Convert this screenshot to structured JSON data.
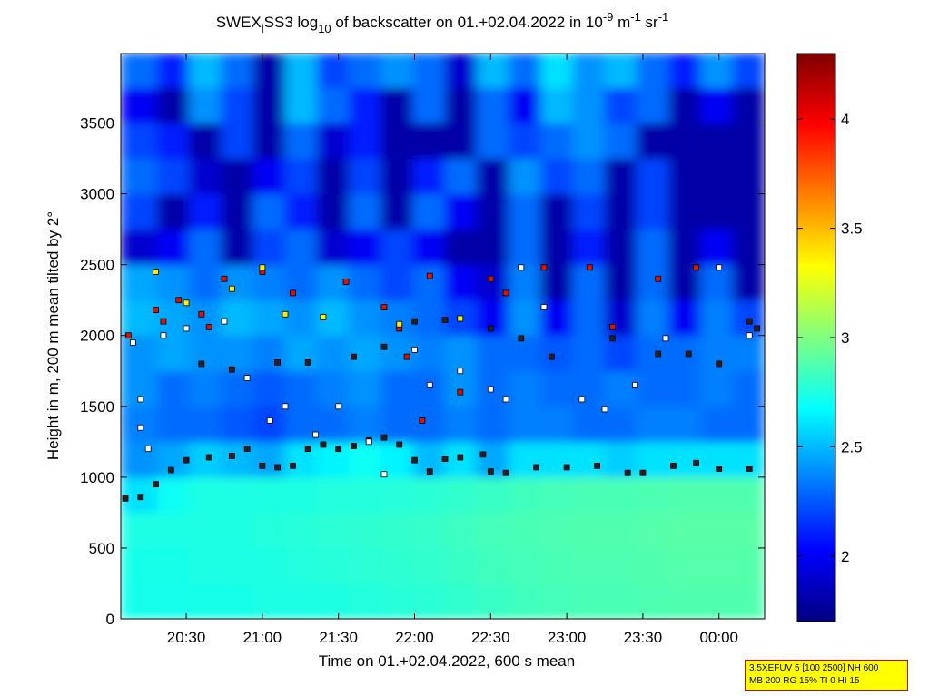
{
  "chart_data": {
    "type": "heatmap",
    "title_parts": [
      "SWEX",
      "l",
      "SS3 log",
      "10",
      " of backscatter on 01.+02.04.2022 in 10",
      "-9",
      " m",
      "-1",
      " sr",
      "-1"
    ],
    "title_styles": [
      "base",
      "sub",
      "base",
      "sub",
      "base",
      "sup",
      "base",
      "sup",
      "base",
      "sup"
    ],
    "xlabel": "Time on 01.+02.04.2022, 600 s mean",
    "ylabel": "Height in m, 200 m mean tilted by 2°",
    "xlim": [
      20.07,
      24.3
    ],
    "xticks": [
      {
        "value": 20.5,
        "label": "20:30"
      },
      {
        "value": 21,
        "label": "21:00"
      },
      {
        "value": 21.5,
        "label": "21:30"
      },
      {
        "value": 22,
        "label": "22:00"
      },
      {
        "value": 22.5,
        "label": "22:30"
      },
      {
        "value": 23,
        "label": "23:00"
      },
      {
        "value": 23.5,
        "label": "23:30"
      },
      {
        "value": 24,
        "label": "00:00"
      }
    ],
    "ylim": [
      0,
      3990
    ],
    "yticks": [
      0,
      500,
      1000,
      1500,
      2000,
      2500,
      3000,
      3500
    ],
    "xbins": [
      20.07,
      20.31,
      20.52,
      20.73,
      20.94,
      21.15,
      21.36,
      21.57,
      21.78,
      21.99,
      22.2,
      22.41,
      22.62,
      22.83,
      23.04,
      23.25,
      23.46,
      23.67,
      23.88,
      24.09,
      24.3
    ],
    "ybins": [
      0,
      250,
      500,
      750,
      1000,
      1250,
      1500,
      1750,
      2000,
      2250,
      2500,
      2750,
      3000,
      3250,
      3500,
      3750,
      3990
    ],
    "z": [
      [
        2.72,
        2.72,
        2.73,
        2.73,
        2.74,
        2.74,
        2.75,
        2.76,
        2.77,
        2.78,
        2.8,
        2.82,
        2.84,
        2.85,
        2.86,
        2.86,
        2.87,
        2.88,
        2.88,
        2.88
      ],
      [
        2.73,
        2.73,
        2.74,
        2.74,
        2.75,
        2.76,
        2.77,
        2.78,
        2.79,
        2.8,
        2.82,
        2.84,
        2.85,
        2.86,
        2.87,
        2.87,
        2.88,
        2.89,
        2.89,
        2.89
      ],
      [
        2.74,
        2.74,
        2.75,
        2.75,
        2.76,
        2.77,
        2.78,
        2.79,
        2.8,
        2.81,
        2.83,
        2.85,
        2.86,
        2.87,
        2.88,
        2.88,
        2.89,
        2.9,
        2.9,
        2.9
      ],
      [
        2.6,
        2.7,
        2.74,
        2.74,
        2.75,
        2.75,
        2.76,
        2.76,
        2.77,
        2.78,
        2.8,
        2.82,
        2.84,
        2.85,
        2.86,
        2.86,
        2.87,
        2.88,
        2.88,
        2.88
      ],
      [
        2.4,
        2.45,
        2.55,
        2.5,
        2.45,
        2.6,
        2.65,
        2.7,
        2.65,
        2.5,
        2.6,
        2.45,
        2.6,
        2.6,
        2.6,
        2.55,
        2.6,
        2.6,
        2.6,
        2.6
      ],
      [
        2.35,
        2.3,
        2.3,
        2.25,
        2.2,
        2.3,
        2.3,
        2.35,
        2.3,
        2.3,
        2.35,
        2.3,
        2.35,
        2.35,
        2.3,
        2.3,
        2.35,
        2.35,
        2.3,
        2.3
      ],
      [
        2.4,
        2.3,
        2.35,
        2.3,
        2.25,
        2.3,
        2.35,
        2.4,
        2.3,
        2.3,
        2.4,
        2.3,
        2.35,
        2.3,
        2.3,
        2.35,
        2.3,
        2.3,
        2.35,
        2.3
      ],
      [
        2.4,
        2.45,
        2.4,
        2.4,
        2.35,
        2.45,
        2.4,
        2.45,
        2.4,
        2.35,
        2.4,
        2.3,
        2.3,
        2.25,
        2.3,
        2.2,
        2.3,
        2.3,
        2.35,
        2.35
      ],
      [
        2.5,
        2.45,
        2.4,
        2.5,
        2.45,
        2.4,
        2.5,
        2.4,
        2.35,
        2.3,
        2.2,
        2.0,
        2.4,
        2.0,
        2.3,
        1.9,
        2.35,
        2.0,
        2.35,
        2.2
      ],
      [
        2.45,
        2.4,
        2.3,
        2.4,
        2.35,
        2.3,
        2.4,
        2.3,
        2.2,
        2.3,
        2.0,
        1.9,
        2.35,
        1.8,
        2.3,
        1.8,
        2.3,
        1.8,
        2.3,
        1.8
      ],
      [
        1.9,
        2.0,
        2.3,
        1.8,
        2.2,
        2.3,
        1.9,
        2.0,
        2.2,
        2.0,
        1.8,
        1.8,
        2.3,
        1.8,
        2.1,
        1.8,
        2.3,
        1.8,
        2.0,
        1.8
      ],
      [
        2.2,
        1.8,
        2.1,
        1.8,
        2.3,
        2.1,
        1.8,
        2.3,
        1.8,
        2.3,
        2.0,
        1.8,
        2.3,
        1.8,
        2.2,
        1.8,
        2.2,
        1.8,
        1.8,
        1.8
      ],
      [
        2.3,
        2.2,
        1.9,
        1.8,
        2.0,
        2.2,
        1.8,
        2.2,
        1.8,
        2.1,
        2.3,
        1.8,
        2.4,
        2.2,
        2.3,
        1.8,
        2.2,
        1.8,
        1.8,
        1.8
      ],
      [
        2.2,
        2.1,
        1.8,
        2.2,
        1.8,
        2.3,
        1.9,
        2.1,
        1.8,
        1.8,
        1.8,
        2.3,
        2.2,
        2.3,
        2.4,
        2.3,
        1.8,
        1.8,
        1.8,
        1.8
      ],
      [
        2.0,
        1.8,
        2.4,
        2.2,
        1.8,
        2.5,
        2.3,
        2.1,
        1.8,
        2.3,
        1.8,
        2.3,
        2.0,
        2.5,
        2.4,
        2.2,
        2.3,
        1.8,
        2.0,
        1.8
      ],
      [
        2.3,
        2.1,
        2.5,
        2.3,
        1.8,
        2.5,
        2.2,
        2.3,
        2.4,
        2.3,
        1.9,
        2.5,
        2.3,
        2.6,
        2.4,
        2.5,
        2.3,
        2.1,
        2.4,
        2.2
      ]
    ],
    "colormap": "jet",
    "clim": [
      1.7,
      4.3
    ],
    "cticks": [
      2,
      2.5,
      3,
      3.5,
      4
    ],
    "series": [
      {
        "color": "#222222",
        "x": [
          20.1,
          20.2,
          20.3,
          20.4,
          20.5,
          20.65,
          20.8,
          20.9,
          21.0,
          21.1,
          21.2,
          21.3,
          21.4,
          21.5,
          21.6,
          21.7,
          21.8,
          21.9,
          22.0,
          22.1,
          22.2,
          22.3,
          22.45,
          22.5,
          22.6,
          22.8,
          23.0,
          23.2,
          23.4,
          23.5,
          23.7,
          23.85,
          24.0,
          24.2,
          20.6,
          20.8,
          21.1,
          21.3,
          21.6,
          21.8,
          22.0,
          22.2,
          22.5,
          22.7,
          22.9,
          23.3,
          23.6,
          23.8,
          24.0,
          24.2,
          24.25
        ],
        "y": [
          850,
          860,
          950,
          1050,
          1120,
          1140,
          1150,
          1200,
          1080,
          1070,
          1080,
          1200,
          1230,
          1200,
          1220,
          1260,
          1280,
          1230,
          1120,
          1040,
          1130,
          1140,
          1160,
          1040,
          1030,
          1070,
          1070,
          1080,
          1030,
          1030,
          1080,
          1100,
          1060,
          1060,
          1800,
          1760,
          1810,
          1810,
          1850,
          1920,
          2100,
          2110,
          2050,
          1980,
          1850,
          1980,
          1870,
          1870,
          1800,
          2100,
          2050
        ]
      },
      {
        "color": "#dd1100",
        "x": [
          20.12,
          20.3,
          20.35,
          20.45,
          20.6,
          20.65,
          20.75,
          21.0,
          21.2,
          21.55,
          21.8,
          21.9,
          22.1,
          22.3,
          22.5,
          22.6,
          22.85,
          23.15,
          23.3,
          23.6,
          23.85,
          22.05,
          21.95
        ],
        "y": [
          2000,
          2180,
          2100,
          2250,
          2150,
          2060,
          2400,
          2450,
          2300,
          2380,
          2200,
          2050,
          2420,
          1600,
          2400,
          2300,
          2480,
          2480,
          2060,
          2400,
          2480,
          1400,
          1850
        ]
      },
      {
        "color": "#ffee00",
        "x": [
          20.3,
          20.5,
          20.8,
          21.0,
          21.15,
          21.4,
          21.9,
          22.3
        ],
        "y": [
          2450,
          2230,
          2330,
          2480,
          2150,
          2130,
          2080,
          2120
        ]
      },
      {
        "color": "#ffffff",
        "x": [
          20.15,
          20.2,
          20.25,
          20.2,
          20.35,
          20.5,
          20.75,
          20.9,
          21.05,
          21.15,
          21.35,
          21.5,
          21.7,
          21.8,
          22.0,
          22.1,
          22.3,
          22.5,
          22.6,
          22.7,
          22.85,
          23.1,
          23.25,
          23.45,
          23.65,
          24.0,
          24.2
        ],
        "y": [
          1950,
          1350,
          1200,
          1550,
          2000,
          2050,
          2100,
          1700,
          1400,
          1500,
          1300,
          1500,
          1250,
          1020,
          1900,
          1650,
          1750,
          1620,
          1550,
          2480,
          2200,
          1550,
          1480,
          1650,
          1980,
          2480,
          2000
        ]
      }
    ],
    "annotation": [
      "3.5XEFUV 5 [100 2500] NH 600",
      "MB 200 RG 15% TI 0 HI 15"
    ]
  }
}
